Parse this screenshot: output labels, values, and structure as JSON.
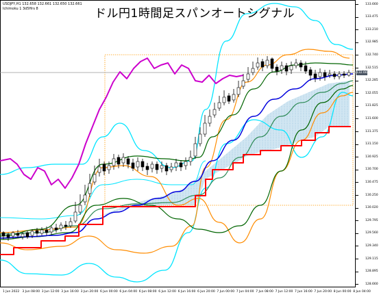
{
  "window": {
    "symbol_info": "USDJPY,H1  132.658 132.661 132.650 132.661",
    "indicator_info": "Ichimoku 1 3d5Hrs 8",
    "title": "ドル円1時間足スパンオートシグナル"
  },
  "price_scale": {
    "labels": [
      "133.660",
      "133.475",
      "133.210",
      "132.985",
      "132.740",
      "132.515",
      "132.285",
      "132.055",
      "131.825",
      "131.600",
      "131.375",
      "131.150",
      "130.925",
      "130.700",
      "130.475",
      "130.250",
      "130.020",
      "129.795",
      "129.560",
      "129.340",
      "129.115",
      "128.895",
      "128.660"
    ],
    "current_price": "132.661"
  },
  "time_scale": {
    "labels": [
      "1 Jun 2022",
      "3 Jun 08:00",
      "3 Jun 12:00",
      "3 Jun 16:00",
      "3 Jun 20:00",
      "6 Jun 00:00",
      "6 Jun 04:00",
      "6 Jun 08:00",
      "6 Jun 12:00",
      "6 Jun 16:00",
      "6 Jun 20:00",
      "7 Jun 00:00",
      "7 Jun 04:00",
      "7 Jun 08:00",
      "7 Jun 12:00",
      "7 Jun 16:00",
      "7 Jun 20:00",
      "8 Jun 00:00",
      "8 Jun 04:00"
    ]
  },
  "colors": {
    "background": "#ffffff",
    "bb_outer": "#00e5ff",
    "bb_mid": "#ff8c00",
    "ma_dark_green": "#006400",
    "ma_green": "#2e8b57",
    "blue_line": "#0000dd",
    "span_line": "#ff0000",
    "chikou": "#cc00cc",
    "cloud": "#7ab7d9",
    "price_line": "#999999",
    "box_line": "#ff9900"
  }
}
